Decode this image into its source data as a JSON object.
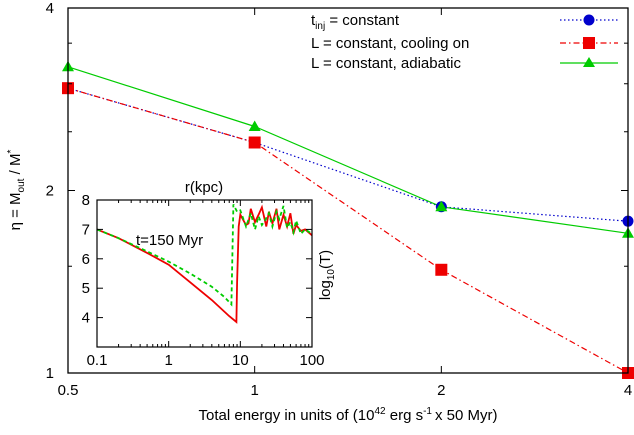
{
  "chart_data": [
    {
      "id": "main",
      "type": "line",
      "xlabel": "Total energy in units of (10^42 erg s^-1 x 50 Myr)",
      "xlabel_parts": {
        "a": "Total energy in units of (10",
        "a_sup": "42",
        "b": " erg s",
        "b_sup": "-1",
        "c": "x 50 Myr)"
      },
      "ylabel": "η = M_out / M*",
      "ylabel_parts": {
        "a": "η = M",
        "a_sub": "out",
        "b": " / M",
        "b_sup": "*"
      },
      "x_scale": "log",
      "y_scale": "log",
      "xlim": [
        0.5,
        4
      ],
      "ylim": [
        1,
        4
      ],
      "xticks": [
        0.5,
        1,
        2,
        4
      ],
      "xtick_labels": [
        "0.5",
        "1",
        "2",
        "4"
      ],
      "yticks": [
        1,
        2,
        4
      ],
      "ytick_labels": [
        "1",
        "2",
        "4"
      ],
      "legend_position": "top-right",
      "series": [
        {
          "key": "tinj",
          "name": "t_inj = constant",
          "name_main": "t",
          "name_sub": "inj",
          "name_rest": " = constant",
          "x": [
            0.5,
            1,
            2,
            4
          ],
          "y": [
            2.95,
            2.4,
            1.88,
            1.78
          ],
          "color": "#0000cc",
          "dash": "dot",
          "marker": "circle"
        },
        {
          "key": "cool",
          "name": "L = constant, cooling on",
          "x": [
            0.5,
            1,
            2,
            4
          ],
          "y": [
            2.95,
            2.4,
            1.48,
            1.0
          ],
          "color": "#ee0000",
          "dash": "dashdot",
          "marker": "square"
        },
        {
          "key": "adia",
          "name": "L = constant, adiabatic",
          "x": [
            0.5,
            1,
            2,
            4
          ],
          "y": [
            3.2,
            2.55,
            1.88,
            1.7
          ],
          "color": "#00cc00",
          "dash": "solid",
          "marker": "triangle"
        }
      ]
    },
    {
      "id": "inset",
      "type": "line",
      "title": "r(kpc)",
      "annotation": "t=150 Myr",
      "ylabel": "log10(T)",
      "ylabel_parts": {
        "a": "log",
        "a_sub": "10",
        "b": "(T)"
      },
      "x_scale": "log",
      "xlim": [
        0.1,
        100
      ],
      "ylim": [
        3,
        8
      ],
      "xticks": [
        0.1,
        1,
        10,
        100
      ],
      "xtick_labels": [
        "0.1",
        "1",
        "10",
        "100"
      ],
      "yticks": [
        4,
        5,
        6,
        7,
        8
      ],
      "ytick_labels": [
        "4",
        "5",
        "6",
        "7",
        "8"
      ],
      "series": [
        {
          "key": "inset_red",
          "color": "#ee0000",
          "dash": "solid",
          "x": [
            0.1,
            0.2,
            0.5,
            1,
            2,
            4,
            7,
            8.8,
            9.0,
            9.5,
            10,
            12,
            13,
            14,
            16,
            18,
            20,
            23,
            25,
            28,
            32,
            35,
            40,
            45,
            50,
            55,
            60,
            70,
            80,
            100
          ],
          "y": [
            7.0,
            6.7,
            6.2,
            5.8,
            5.2,
            4.6,
            4.05,
            3.85,
            5.2,
            7.1,
            7.5,
            7.15,
            7.2,
            7.7,
            7.25,
            7.5,
            7.75,
            7.1,
            7.6,
            7.2,
            7.7,
            7.0,
            7.5,
            7.1,
            7.55,
            6.85,
            7.15,
            6.95,
            7.0,
            6.8
          ]
        },
        {
          "key": "inset_green",
          "color": "#00cc00",
          "dash": "dash",
          "x": [
            0.1,
            0.2,
            0.5,
            1,
            2,
            4,
            6,
            7.5,
            8,
            9,
            10,
            12,
            14,
            16,
            18,
            20,
            22,
            25,
            28,
            32,
            35,
            40,
            45,
            50,
            55,
            60,
            70,
            80,
            100
          ],
          "y": [
            7.0,
            6.7,
            6.25,
            5.9,
            5.5,
            5.05,
            4.7,
            4.45,
            7.85,
            7.6,
            7.65,
            7.1,
            7.55,
            7.0,
            7.45,
            7.15,
            7.3,
            7.55,
            7.1,
            7.6,
            7.35,
            7.8,
            7.05,
            7.25,
            6.9,
            7.3,
            6.85,
            7.0,
            6.85
          ]
        }
      ]
    }
  ]
}
